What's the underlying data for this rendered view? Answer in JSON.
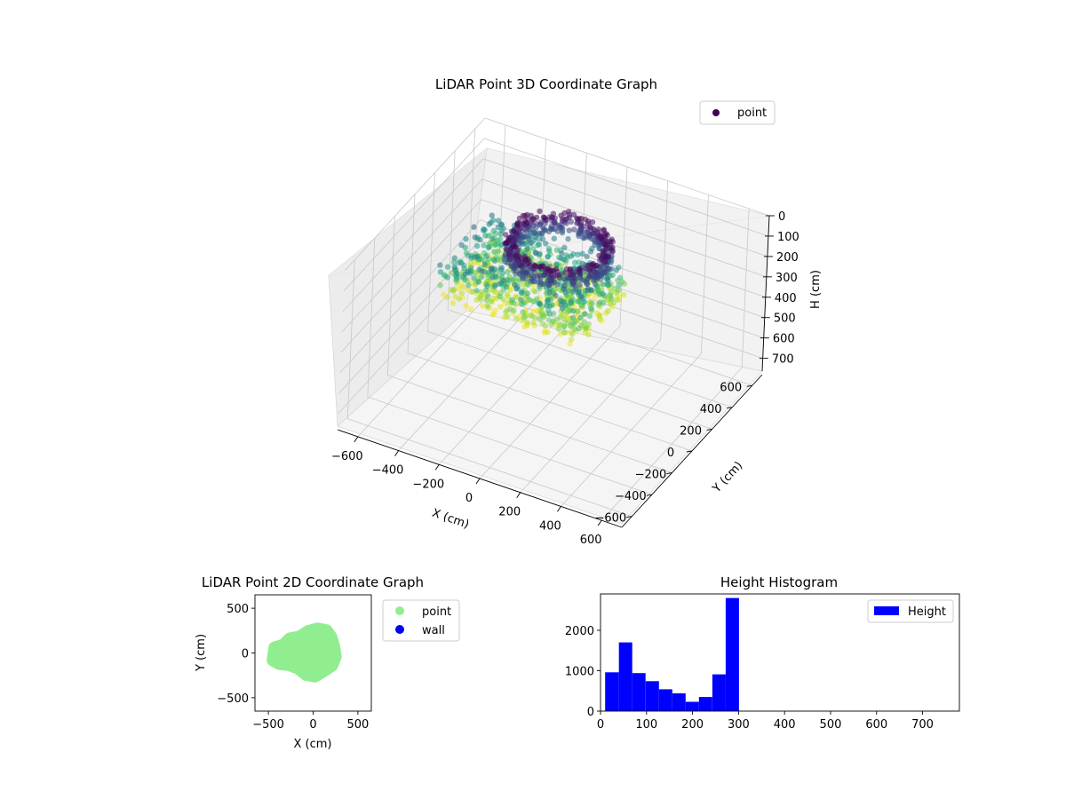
{
  "colors": {
    "point_2d": "#90ee90",
    "wall": "#0000ff",
    "histogram": "#0000ff",
    "legend_point_3d": "#440154",
    "colormap": "viridis"
  },
  "chart_data": [
    {
      "type": "scatter3d",
      "title": "LiDAR Point 3D Coordinate Graph",
      "xlabel": "X (cm)",
      "ylabel": "Y (cm)",
      "zlabel": "H (cm)",
      "xlim": [
        -700,
        700
      ],
      "ylim": [
        -700,
        700
      ],
      "zlim": [
        0,
        780
      ],
      "z_inverted": true,
      "x_ticks": [
        -600,
        -400,
        -200,
        0,
        200,
        400,
        600
      ],
      "x_tick_labels": [
        "−600",
        "−400",
        "−200",
        "0",
        "200",
        "400",
        "600"
      ],
      "y_ticks": [
        -600,
        -400,
        -200,
        0,
        200,
        400,
        600
      ],
      "y_tick_labels": [
        "−600",
        "−400",
        "−200",
        "0",
        "200",
        "400",
        "600"
      ],
      "z_ticks": [
        0,
        100,
        200,
        300,
        400,
        500,
        600,
        700
      ],
      "z_tick_labels": [
        "0",
        "100",
        "200",
        "300",
        "400",
        "500",
        "600",
        "700"
      ],
      "grid": true,
      "legend": {
        "placement": "top-right",
        "entries": [
          "point"
        ]
      },
      "series": [
        {
          "name": "point",
          "color_by": "height",
          "structure": "ring of points at constant height, plus irregular blob below",
          "ring": {
            "center": [
              0,
              20
            ],
            "radius_x": 230,
            "radius_y": 230,
            "height_range": [
              0,
              90
            ]
          },
          "blob": {
            "center": [
              0,
              0
            ],
            "x_range": [
              -450,
              250
            ],
            "y_range": [
              -250,
              250
            ],
            "height_range": [
              90,
              300
            ]
          }
        }
      ]
    },
    {
      "type": "scatter",
      "title": "LiDAR Point 2D Coordinate Graph",
      "xlabel": "X (cm)",
      "ylabel": "Y (cm)",
      "xlim": [
        -650,
        650
      ],
      "ylim": [
        -650,
        650
      ],
      "x_ticks": [
        -500,
        0,
        500
      ],
      "x_tick_labels": [
        "−500",
        "0",
        "500"
      ],
      "y_ticks": [
        -500,
        0,
        500
      ],
      "y_tick_labels": [
        "−500",
        "0",
        "500"
      ],
      "legend": {
        "placement": "outside-right",
        "entries": [
          "point",
          "wall"
        ]
      },
      "series": [
        {
          "name": "point",
          "outline": [
            [
              -450,
              -80
            ],
            [
              -430,
              60
            ],
            [
              -330,
              90
            ],
            [
              -260,
              160
            ],
            [
              -150,
              180
            ],
            [
              -60,
              240
            ],
            [
              50,
              270
            ],
            [
              150,
              250
            ],
            [
              200,
              180
            ],
            [
              230,
              80
            ],
            [
              250,
              -40
            ],
            [
              210,
              -140
            ],
            [
              120,
              -200
            ],
            [
              20,
              -260
            ],
            [
              -80,
              -240
            ],
            [
              -170,
              -170
            ],
            [
              -280,
              -130
            ],
            [
              -380,
              -120
            ]
          ]
        },
        {
          "name": "wall",
          "points": []
        }
      ]
    },
    {
      "type": "histogram",
      "title": "Height Histogram",
      "xlim": [
        0,
        780
      ],
      "ylim": [
        0,
        2900
      ],
      "x_ticks": [
        0,
        100,
        200,
        300,
        400,
        500,
        600,
        700
      ],
      "x_tick_labels": [
        "0",
        "100",
        "200",
        "300",
        "400",
        "500",
        "600",
        "700"
      ],
      "y_ticks": [
        0,
        1000,
        2000
      ],
      "y_tick_labels": [
        "0",
        "1000",
        "2000"
      ],
      "legend": {
        "placement": "top-right",
        "entries": [
          "Height"
        ]
      },
      "series": [
        {
          "name": "Height",
          "bin_edges": [
            10,
            40,
            69,
            98,
            127,
            156,
            185,
            214,
            243,
            272,
            301
          ],
          "counts": [
            960,
            1700,
            940,
            740,
            540,
            440,
            230,
            350,
            910,
            2800
          ]
        }
      ]
    }
  ]
}
